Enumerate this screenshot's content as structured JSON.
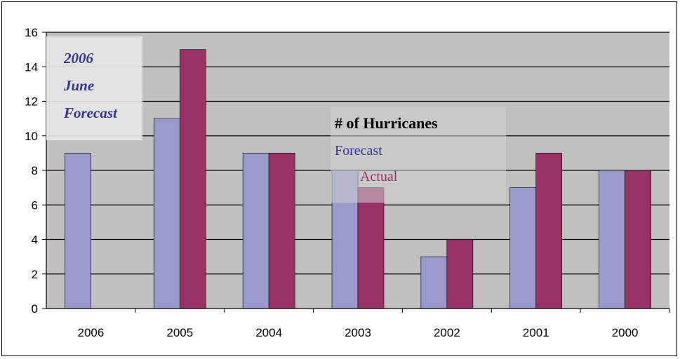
{
  "chart_data": {
    "type": "bar",
    "title": "# of Hurricanes",
    "xlabel": "",
    "ylabel": "",
    "categories": [
      "2006",
      "2005",
      "2004",
      "2003",
      "2002",
      "2001",
      "2000"
    ],
    "series": [
      {
        "name": "Forecast",
        "values": [
          9,
          11,
          9,
          8,
          3,
          7,
          8
        ],
        "color": "#9999cc"
      },
      {
        "name": "Actual",
        "values": [
          null,
          15,
          9,
          7,
          4,
          9,
          8
        ],
        "color": "#993366"
      }
    ],
    "ylim": [
      0,
      16
    ],
    "yticks": [
      0,
      2,
      4,
      6,
      8,
      10,
      12,
      14,
      16
    ],
    "ytick_labels": [
      "0",
      "2",
      "4",
      "6",
      "8",
      "10",
      "12",
      "14",
      "16"
    ],
    "grid": "horizontal",
    "plot_background": "#c0c0c0",
    "legend_position": "center",
    "inset_label": [
      "2006",
      "June",
      "Forecast"
    ],
    "inset_label_color": "#333399"
  }
}
